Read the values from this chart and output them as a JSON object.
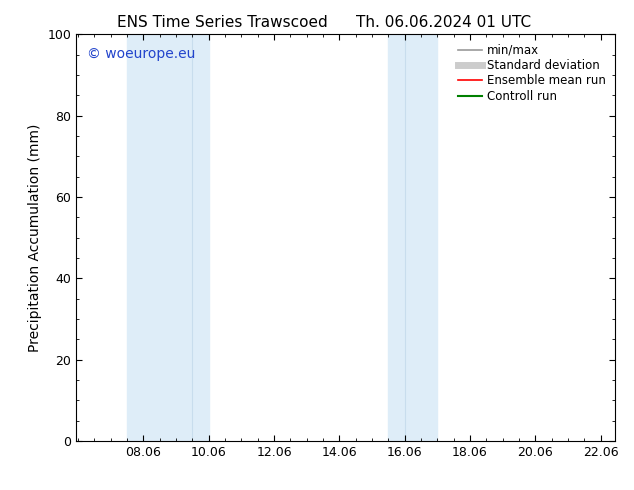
{
  "title_left": "ENS Time Series Trawscoed",
  "title_right": "Th. 06.06.2024 01 UTC",
  "ylabel": "Precipitation Accumulation (mm)",
  "watermark": "© woeurope.eu",
  "xlim": [
    6.0,
    22.5
  ],
  "ylim": [
    0,
    100
  ],
  "yticks": [
    0,
    20,
    40,
    60,
    80,
    100
  ],
  "xtick_labels": [
    "08.06",
    "10.06",
    "12.06",
    "14.06",
    "16.06",
    "18.06",
    "20.06",
    "22.06"
  ],
  "xtick_positions": [
    8.06,
    10.06,
    12.06,
    14.06,
    16.06,
    18.06,
    20.06,
    22.06
  ],
  "shaded_bands": [
    {
      "xmin": 8.06,
      "xmax": 9.56
    },
    {
      "xmin": 9.56,
      "xmax": 10.06
    },
    {
      "xmin": 15.56,
      "xmax": 16.06
    },
    {
      "xmin": 16.06,
      "xmax": 17.06
    }
  ],
  "band_colors": [
    "#d8eaf8",
    "#d8eaf8",
    "#d8eaf8",
    "#d8eaf8"
  ],
  "background_color": "#ffffff",
  "legend_entries": [
    {
      "label": "min/max",
      "color": "#999999",
      "lw": 1.2
    },
    {
      "label": "Standard deviation",
      "color": "#cccccc",
      "lw": 5
    },
    {
      "label": "Ensemble mean run",
      "color": "#ff0000",
      "lw": 1.2
    },
    {
      "label": "Controll run",
      "color": "#008000",
      "lw": 1.5
    }
  ],
  "title_fontsize": 11,
  "tick_fontsize": 9,
  "ylabel_fontsize": 10,
  "watermark_color": "#2244cc",
  "watermark_fontsize": 10,
  "legend_fontsize": 8.5
}
